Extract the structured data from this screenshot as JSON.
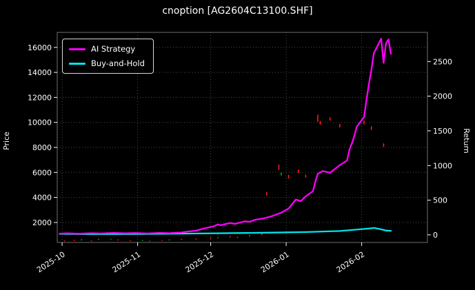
{
  "chart_data": {
    "type": "line",
    "title": "cnoption [AG2604C13100.SHF]",
    "background_color": "#000000",
    "grid_color": "#46524a",
    "grid_style": "dotted",
    "legend_position": "upper-left",
    "up_color": "#00b200",
    "down_color": "#ff1a1a",
    "left_axis": {
      "label": "Price",
      "min": 400,
      "max": 17200,
      "ticks": [
        2000,
        4000,
        6000,
        8000,
        10000,
        12000,
        14000,
        16000
      ]
    },
    "right_axis": {
      "label": "Return",
      "min": -110,
      "max": 2920,
      "ticks": [
        0,
        500,
        1000,
        1500,
        2000,
        2500
      ]
    },
    "x_axis": {
      "min": "2025-09-29",
      "max": "2026-02-28",
      "ticks": [
        "2025-10-01",
        "2025-11-01",
        "2025-12-01",
        "2026-01-01",
        "2026-02-01"
      ],
      "tick_labels": [
        "2025-10",
        "2025-11",
        "2025-12",
        "2026-01",
        "2026-02"
      ]
    },
    "series": [
      {
        "name": "AI Strategy",
        "color": "#ff00ff",
        "axis": "right",
        "points": [
          [
            "2025-09-30",
            18
          ],
          [
            "2025-10-03",
            22
          ],
          [
            "2025-10-08",
            16
          ],
          [
            "2025-10-13",
            24
          ],
          [
            "2025-10-17",
            20
          ],
          [
            "2025-10-22",
            28
          ],
          [
            "2025-10-27",
            22
          ],
          [
            "2025-10-31",
            26
          ],
          [
            "2025-11-05",
            20
          ],
          [
            "2025-11-10",
            28
          ],
          [
            "2025-11-14",
            24
          ],
          [
            "2025-11-19",
            34
          ],
          [
            "2025-11-21",
            45
          ],
          [
            "2025-11-25",
            60
          ],
          [
            "2025-11-28",
            90
          ],
          [
            "2025-12-02",
            120
          ],
          [
            "2025-12-04",
            150
          ],
          [
            "2025-12-05",
            138
          ],
          [
            "2025-12-09",
            170
          ],
          [
            "2025-12-11",
            158
          ],
          [
            "2025-12-15",
            195
          ],
          [
            "2025-12-17",
            188
          ],
          [
            "2025-12-19",
            215
          ],
          [
            "2025-12-23",
            240
          ],
          [
            "2025-12-26",
            268
          ],
          [
            "2025-12-30",
            320
          ],
          [
            "2026-01-02",
            380
          ],
          [
            "2026-01-05",
            510
          ],
          [
            "2026-01-07",
            485
          ],
          [
            "2026-01-09",
            555
          ],
          [
            "2026-01-12",
            630
          ],
          [
            "2026-01-13",
            770
          ],
          [
            "2026-01-14",
            880
          ],
          [
            "2026-01-16",
            920
          ],
          [
            "2026-01-19",
            895
          ],
          [
            "2026-01-21",
            950
          ],
          [
            "2026-01-23",
            1005
          ],
          [
            "2026-01-26",
            1070
          ],
          [
            "2026-01-27",
            1230
          ],
          [
            "2026-01-28",
            1320
          ],
          [
            "2026-01-29",
            1430
          ],
          [
            "2026-01-30",
            1560
          ],
          [
            "2026-02-02",
            1700
          ],
          [
            "2026-02-03",
            1950
          ],
          [
            "2026-02-04",
            2180
          ],
          [
            "2026-02-05",
            2380
          ],
          [
            "2026-02-06",
            2620
          ],
          [
            "2026-02-09",
            2830
          ],
          [
            "2026-02-10",
            2480
          ],
          [
            "2026-02-11",
            2760
          ],
          [
            "2026-02-12",
            2820
          ],
          [
            "2026-02-13",
            2610
          ]
        ]
      },
      {
        "name": "Buy-and-Hold",
        "color": "#00e5ee",
        "axis": "right",
        "points": [
          [
            "2025-09-30",
            14
          ],
          [
            "2025-10-15",
            10
          ],
          [
            "2025-10-31",
            12
          ],
          [
            "2025-11-14",
            16
          ],
          [
            "2025-11-28",
            20
          ],
          [
            "2025-12-12",
            26
          ],
          [
            "2025-12-26",
            32
          ],
          [
            "2026-01-09",
            40
          ],
          [
            "2026-01-16",
            48
          ],
          [
            "2026-01-23",
            55
          ],
          [
            "2026-01-28",
            70
          ],
          [
            "2026-02-02",
            85
          ],
          [
            "2026-02-05",
            95
          ],
          [
            "2026-02-06",
            100
          ],
          [
            "2026-02-09",
            80
          ],
          [
            "2026-02-11",
            62
          ],
          [
            "2026-02-13",
            58
          ]
        ]
      }
    ],
    "candles": [
      [
        "2025-10-02",
        480,
        560,
        "down"
      ],
      [
        "2025-10-06",
        520,
        610,
        "down"
      ],
      [
        "2025-10-09",
        560,
        660,
        "up"
      ],
      [
        "2025-10-13",
        500,
        570,
        "down"
      ],
      [
        "2025-10-16",
        600,
        690,
        "up"
      ],
      [
        "2025-10-21",
        630,
        710,
        "up"
      ],
      [
        "2025-10-24",
        560,
        640,
        "down"
      ],
      [
        "2025-10-29",
        500,
        580,
        "down"
      ],
      [
        "2025-11-03",
        520,
        600,
        "up"
      ],
      [
        "2025-11-06",
        470,
        550,
        "down"
      ],
      [
        "2025-11-11",
        520,
        590,
        "down"
      ],
      [
        "2025-11-14",
        560,
        650,
        "up"
      ],
      [
        "2025-11-19",
        600,
        690,
        "down"
      ],
      [
        "2025-11-25",
        640,
        730,
        "down"
      ],
      [
        "2025-12-01",
        700,
        810,
        "down"
      ],
      [
        "2025-12-04",
        740,
        830,
        "up"
      ],
      [
        "2025-12-09",
        800,
        910,
        "down"
      ],
      [
        "2025-12-12",
        760,
        860,
        "down"
      ],
      [
        "2025-12-17",
        890,
        1000,
        "up"
      ],
      [
        "2025-12-22",
        980,
        1120,
        "down"
      ],
      [
        "2025-12-24",
        4150,
        4420,
        "down"
      ],
      [
        "2025-12-29",
        6200,
        6620,
        "down"
      ],
      [
        "2025-12-30",
        5760,
        5980,
        "up"
      ],
      [
        "2026-01-02",
        5520,
        5800,
        "down"
      ],
      [
        "2026-01-06",
        5950,
        6220,
        "down"
      ],
      [
        "2026-01-09",
        5600,
        5820,
        "down"
      ],
      [
        "2026-01-14",
        10050,
        10620,
        "down"
      ],
      [
        "2026-01-15",
        9820,
        10120,
        "down"
      ],
      [
        "2026-01-19",
        10150,
        10420,
        "down"
      ],
      [
        "2026-01-23",
        9600,
        9880,
        "down"
      ],
      [
        "2026-02-02",
        9850,
        10150,
        "down"
      ],
      [
        "2026-02-05",
        9400,
        9680,
        "down"
      ],
      [
        "2026-02-10",
        8050,
        8320,
        "down"
      ]
    ]
  }
}
